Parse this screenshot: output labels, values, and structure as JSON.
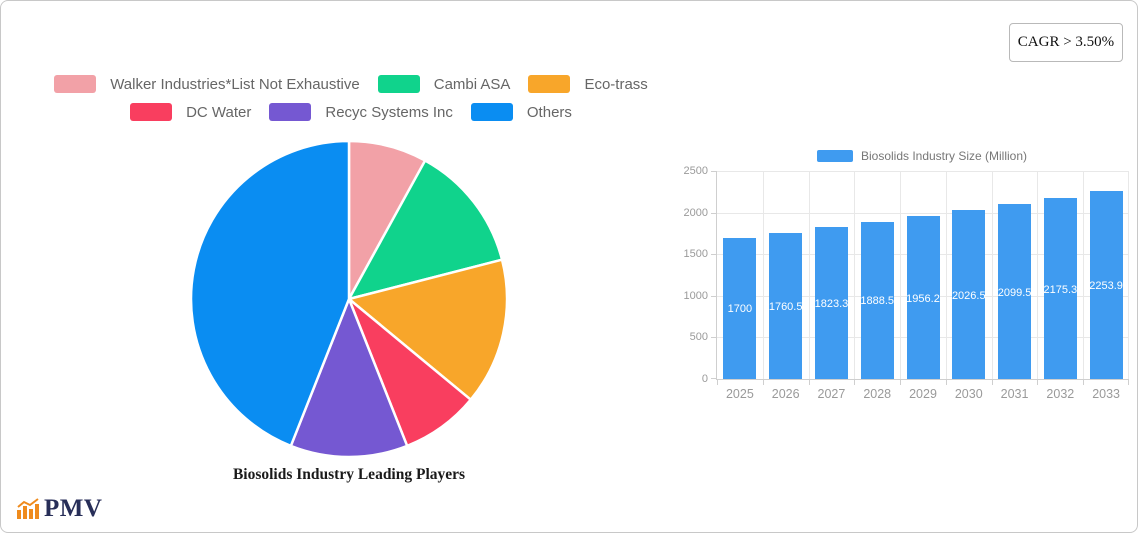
{
  "cagr_badge": {
    "label": "CAGR > 3.50%"
  },
  "logo": {
    "text": "PMV"
  },
  "chart_data": [
    {
      "type": "pie",
      "title": "Biosolids Industry Leading Players",
      "labels": [
        "Walker Industries*List Not Exhaustive",
        "Cambi ASA",
        "Eco-trass",
        "DC Water",
        "Recyc Systems Inc",
        "Others"
      ],
      "values": [
        8,
        13,
        15,
        8,
        12,
        44
      ],
      "colors": [
        "#F2A1A7",
        "#10D38C",
        "#F8A62A",
        "#F93E5F",
        "#7558D2",
        "#0A8DF2"
      ],
      "legend_position": "top",
      "legend_rows": [
        [
          0,
          1,
          2
        ],
        [
          3,
          4,
          5
        ]
      ],
      "slice_border_color": "#ffffff"
    },
    {
      "type": "bar",
      "legend": "Biosolids Industry Size (Million)",
      "categories": [
        "2025",
        "2026",
        "2027",
        "2028",
        "2029",
        "2030",
        "2031",
        "2032",
        "2033"
      ],
      "values": [
        1700,
        1760.5,
        1823.3,
        1888.5,
        1956.2,
        2026.5,
        2099.5,
        2175.3,
        2253.9
      ],
      "value_labels": [
        "1700",
        "1760.5",
        "1823.3",
        "1888.5",
        "1956.2",
        "2026.5",
        "2099.5",
        "2175.3",
        "2253.9"
      ],
      "bar_color": "#3F9BF0",
      "ylim": [
        0,
        2500
      ],
      "yticks": [
        0,
        500,
        1000,
        1500,
        2000,
        2500
      ],
      "grid": true,
      "value_label_position": "center-inside",
      "value_label_color": "#ffffff"
    }
  ]
}
